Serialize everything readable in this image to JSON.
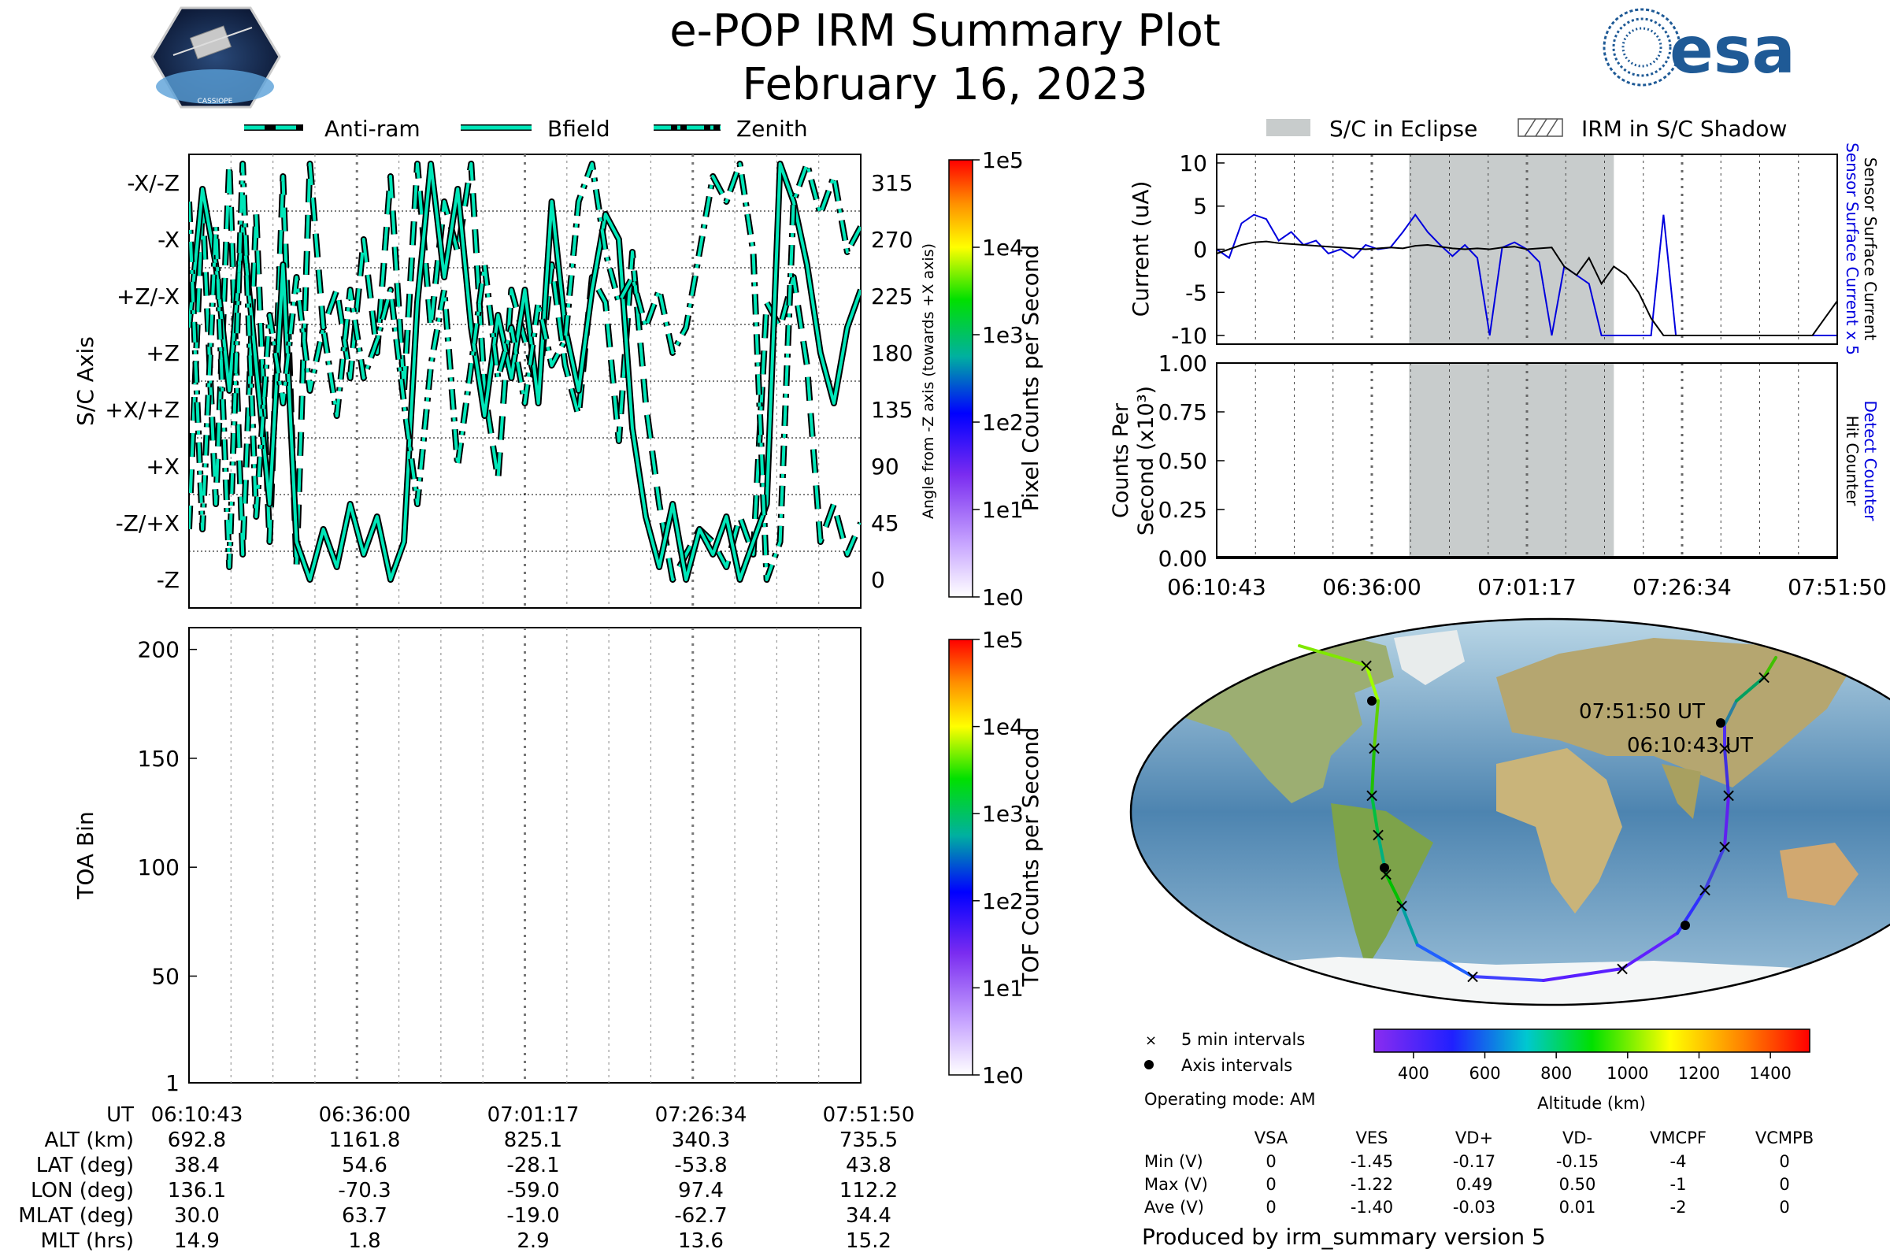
{
  "header": {
    "title": "e-POP IRM Summary Plot",
    "date": "February 16, 2023",
    "mission_logo_text": "CASSIOPE",
    "agency_logo_text": "esa"
  },
  "colors": {
    "trace_fill": "#00e6b8",
    "trace_edge": "#000000",
    "eclipse": "#c8cccc",
    "sensor_current": "#0000dd",
    "surface_current": "#000000",
    "detect_counter": "#0000dd"
  },
  "legend_top": {
    "items": [
      {
        "label": "Anti-ram",
        "style": "dashed"
      },
      {
        "label": "Bfield",
        "style": "solid"
      },
      {
        "label": "Zenith",
        "style": "dashdot"
      }
    ]
  },
  "legend_right": {
    "items": [
      {
        "label": "S/C in Eclipse",
        "style": "gray-fill"
      },
      {
        "label": "IRM in S/C Shadow",
        "style": "hatch"
      }
    ]
  },
  "chart_data": [
    {
      "id": "sc_axis",
      "type": "line",
      "ylabel": "S/C Axis",
      "ylabel_right": "Angle from -Z axis (towards +X axis)",
      "left_ticks": [
        "-X/-Z",
        "-X",
        "+Z/-X",
        "+Z",
        "+X/+Z",
        "+X",
        "-Z/+X",
        "-Z"
      ],
      "right_ticks": [
        "315",
        "270",
        "225",
        "180",
        "135",
        "90",
        "45",
        "0"
      ],
      "ylim": [
        -22.5,
        337.5
      ],
      "colorbar": {
        "label": "Pixel Counts per Second",
        "ticks": [
          "1e5",
          "1e4",
          "1e3",
          "1e2",
          "1e1",
          "1e0"
        ]
      },
      "series": [
        {
          "name": "Anti-ram",
          "style": "dashed",
          "x": [
            0,
            2,
            4,
            6,
            8,
            10,
            12,
            14,
            16,
            18,
            20,
            22,
            24,
            26,
            28,
            30,
            32,
            34,
            36,
            38,
            40,
            42,
            44,
            46,
            48,
            50,
            52,
            54,
            56,
            58,
            60,
            62,
            64,
            66,
            68,
            70,
            72,
            74,
            76,
            78,
            80,
            82,
            84,
            86,
            88,
            90,
            92,
            94,
            96,
            98,
            100
          ],
          "y": [
            40,
            300,
            60,
            330,
            20,
            290,
            30,
            320,
            10,
            330,
            200,
            230,
            160,
            270,
            180,
            320,
            150,
            330,
            200,
            300,
            260,
            330,
            150,
            80,
            230,
            190,
            150,
            250,
            170,
            130,
            240,
            220,
            110,
            260,
            140,
            60,
            0,
            20,
            40,
            30,
            10,
            50,
            20,
            220,
            200,
            240,
            170,
            30,
            60,
            20,
            45
          ]
        },
        {
          "name": "Bfield",
          "style": "solid",
          "x": [
            0,
            2,
            4,
            6,
            8,
            10,
            12,
            14,
            16,
            18,
            20,
            22,
            24,
            26,
            28,
            30,
            32,
            34,
            36,
            38,
            40,
            42,
            44,
            46,
            48,
            50,
            52,
            54,
            56,
            58,
            60,
            62,
            64,
            66,
            68,
            70,
            72,
            74,
            76,
            78,
            80,
            82,
            84,
            86,
            88,
            90,
            92,
            94,
            96,
            98,
            100
          ],
          "y": [
            200,
            310,
            250,
            150,
            280,
            170,
            60,
            250,
            30,
            0,
            40,
            10,
            60,
            20,
            50,
            0,
            30,
            220,
            330,
            240,
            310,
            200,
            130,
            210,
            160,
            230,
            140,
            300,
            200,
            150,
            230,
            290,
            270,
            120,
            50,
            10,
            60,
            0,
            40,
            20,
            50,
            0,
            30,
            60,
            330,
            300,
            250,
            180,
            140,
            200,
            230
          ]
        },
        {
          "name": "Zenith",
          "style": "dashdot",
          "x": [
            0,
            2,
            4,
            6,
            8,
            10,
            12,
            14,
            16,
            18,
            20,
            22,
            24,
            26,
            28,
            30,
            32,
            34,
            36,
            38,
            40,
            42,
            44,
            46,
            48,
            50,
            52,
            54,
            56,
            58,
            60,
            62,
            64,
            66,
            68,
            70,
            72,
            74,
            76,
            78,
            80,
            82,
            84,
            86,
            88,
            90,
            92,
            94,
            96,
            98,
            100
          ],
          "y": [
            300,
            40,
            280,
            10,
            330,
            50,
            210,
            140,
            240,
            150,
            200,
            130,
            230,
            160,
            190,
            230,
            140,
            60,
            170,
            230,
            90,
            170,
            250,
            160,
            200,
            140,
            220,
            170,
            190,
            300,
            330,
            260,
            220,
            240,
            200,
            230,
            180,
            200,
            260,
            320,
            300,
            330,
            260,
            0,
            30,
            300,
            330,
            290,
            320,
            260,
            280
          ]
        }
      ]
    },
    {
      "id": "toa",
      "type": "heatmap",
      "ylabel": "TOA Bin",
      "y_ticks": [
        1,
        50,
        100,
        150,
        200
      ],
      "ylim": [
        1,
        210
      ],
      "values": [],
      "colorbar": {
        "label": "TOF Counts per Second",
        "ticks": [
          "1e5",
          "1e4",
          "1e3",
          "1e2",
          "1e1",
          "1e0"
        ]
      }
    },
    {
      "id": "current",
      "type": "line",
      "ylabel": "Current (uA)",
      "ylabel_right": [
        "Sensor Surface Current x 5",
        "Sensor Surface Current"
      ],
      "y_ticks": [
        10,
        5,
        0,
        -5,
        -10
      ],
      "ylim": [
        -11,
        11
      ],
      "eclipse_range": [
        31,
        64
      ],
      "series": [
        {
          "name": "Sensor Surface Current x 5",
          "color": "blue",
          "x": [
            0,
            2,
            4,
            6,
            8,
            10,
            12,
            14,
            16,
            18,
            20,
            22,
            24,
            26,
            28,
            30,
            32,
            34,
            36,
            38,
            40,
            42,
            44,
            46,
            48,
            50,
            52,
            54,
            56,
            58,
            60,
            62,
            64,
            66,
            68,
            70,
            72,
            74,
            76,
            78,
            80,
            82,
            84,
            86,
            88,
            90,
            92,
            94,
            96,
            98,
            100
          ],
          "y": [
            0,
            -1,
            3,
            4,
            3.5,
            1,
            2,
            0.5,
            1,
            -0.5,
            0,
            -1,
            0.5,
            0,
            0.2,
            2,
            4,
            2,
            0.5,
            -0.8,
            0.5,
            -1,
            -10,
            0.2,
            0.8,
            0,
            -1.5,
            -10,
            -2,
            -3,
            -4,
            -10,
            -10,
            -10,
            -10,
            -10,
            4,
            -10,
            -10,
            -10,
            -10,
            -10,
            -10,
            -10,
            -10,
            -10,
            -10,
            -10,
            -10,
            -10,
            -10
          ]
        },
        {
          "name": "Sensor Surface Current",
          "color": "black",
          "x": [
            0,
            2,
            4,
            6,
            8,
            10,
            12,
            14,
            16,
            18,
            20,
            22,
            24,
            26,
            28,
            30,
            32,
            34,
            36,
            38,
            40,
            42,
            44,
            46,
            48,
            50,
            52,
            54,
            56,
            58,
            60,
            62,
            64,
            66,
            68,
            70,
            72,
            74,
            76,
            78,
            80,
            82,
            84,
            86,
            88,
            90,
            92,
            94,
            96,
            98,
            100
          ],
          "y": [
            -0.5,
            0,
            0.5,
            0.8,
            0.9,
            0.7,
            0.6,
            0.5,
            0.4,
            0.3,
            0.2,
            0.1,
            0,
            0.1,
            0.2,
            0.1,
            0.4,
            0.5,
            0.3,
            0.1,
            0,
            0.1,
            0,
            0.2,
            0.3,
            0,
            0.1,
            0.2,
            -2,
            -3,
            -1,
            -4,
            -2,
            -3,
            -5,
            -8,
            -10,
            -10,
            -10,
            -10,
            -10,
            -10,
            -10,
            -10,
            -10,
            -10,
            -10,
            -10,
            -10,
            -8,
            -6
          ]
        }
      ]
    },
    {
      "id": "counts",
      "type": "line",
      "ylabel": "Counts Per Second (x10³)",
      "ylabel_right": [
        "Detect Counter",
        "Hit Counter"
      ],
      "y_ticks": [
        "1.00",
        "0.75",
        "0.50",
        "0.25",
        "0.00"
      ],
      "ylim": [
        0,
        1
      ],
      "eclipse_range": [
        31,
        64
      ],
      "series": [
        {
          "name": "Detect Counter",
          "color": "blue",
          "x": [
            0,
            100
          ],
          "y": [
            0,
            0
          ]
        },
        {
          "name": "Hit Counter",
          "color": "black",
          "x": [
            0,
            100
          ],
          "y": [
            0,
            0
          ]
        }
      ]
    },
    {
      "id": "altitude_colorbar",
      "type": "colorbar",
      "xlabel": "Altitude (km)",
      "ticks": [
        400,
        600,
        800,
        1000,
        1200,
        1400
      ]
    }
  ],
  "time_axis": {
    "ticks": [
      "06:10:43",
      "06:36:00",
      "07:01:17",
      "07:26:34",
      "07:51:50"
    ]
  },
  "ephemeris": {
    "row_labels": [
      "UT",
      "ALT (km)",
      "LAT (deg)",
      "LON (deg)",
      "MLAT (deg)",
      "MLT (hrs)"
    ],
    "columns": [
      [
        "06:10:43",
        "692.8",
        "38.4",
        "136.1",
        "30.0",
        "14.9"
      ],
      [
        "06:36:00",
        "1161.8",
        "54.6",
        "-70.3",
        "63.7",
        "1.8"
      ],
      [
        "07:01:17",
        "825.1",
        "-28.1",
        "-59.0",
        "-19.0",
        "2.9"
      ],
      [
        "07:26:34",
        "340.3",
        "-53.8",
        "97.4",
        "-62.7",
        "13.6"
      ],
      [
        "07:51:50",
        "735.5",
        "43.8",
        "112.2",
        "34.4",
        "15.2"
      ]
    ]
  },
  "map": {
    "start_label": "06:10:43 UT",
    "end_label": "07:51:50 UT",
    "legend_5min": "5 min intervals",
    "legend_axis": "Axis intervals",
    "operating_mode": "Operating mode: AM"
  },
  "voltage_table": {
    "headers": [
      "VSA",
      "VES",
      "VD+",
      "VD-",
      "VMCPF",
      "VCMPB"
    ],
    "rows": [
      {
        "label": "Min (V)",
        "values": [
          "0",
          "-1.45",
          "-0.17",
          "-0.15",
          "-4",
          "0"
        ]
      },
      {
        "label": "Max (V)",
        "values": [
          "0",
          "-1.22",
          "0.49",
          "0.50",
          "-1",
          "0"
        ]
      },
      {
        "label": "Ave (V)",
        "values": [
          "0",
          "-1.40",
          "-0.03",
          "0.01",
          "-2",
          "0"
        ]
      }
    ]
  },
  "footer": "Produced by irm_summary version 5"
}
